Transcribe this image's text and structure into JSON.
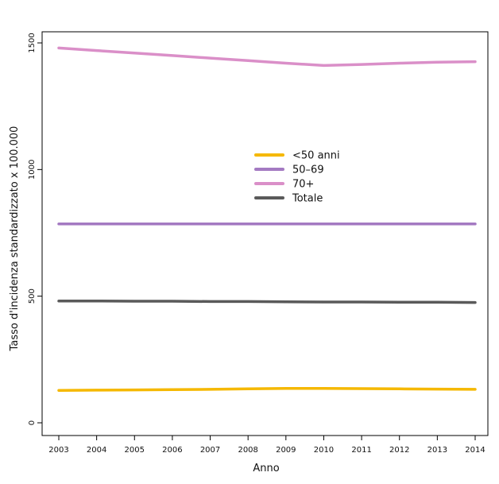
{
  "chart_data": {
    "type": "line",
    "title": "",
    "xlabel": "Anno",
    "ylabel": "Tasso d'incidenza standardizzato x 100.000",
    "x": [
      2003,
      2004,
      2005,
      2006,
      2007,
      2008,
      2009,
      2010,
      2011,
      2012,
      2013,
      2014
    ],
    "x_tick_labels": [
      "2003",
      "2004",
      "2005",
      "2006",
      "2007",
      "2008",
      "2009",
      "2010",
      "2011",
      "2012",
      "2013",
      "2014"
    ],
    "xlim": [
      2003,
      2014
    ],
    "ylim": [
      0,
      1500
    ],
    "y_ticks": [
      0,
      500,
      1000,
      1500
    ],
    "y_tick_labels": [
      "0",
      "500",
      "1000",
      "1500"
    ],
    "grid": false,
    "legend_position": "center",
    "series": [
      {
        "name": "<50 anni",
        "color": "#F5B800",
        "values": [
          128,
          129,
          130,
          131,
          132,
          134,
          136,
          136,
          135,
          134,
          133,
          132
        ]
      },
      {
        "name": "50–69",
        "color": "#A47AC2",
        "values": [
          785,
          785,
          785,
          785,
          785,
          785,
          785,
          785,
          785,
          785,
          785,
          785
        ]
      },
      {
        "name": "70+",
        "color": "#DA8FC8",
        "values": [
          1480,
          1470,
          1460,
          1450,
          1440,
          1430,
          1420,
          1411,
          1415,
          1420,
          1424,
          1426
        ]
      },
      {
        "name": "Totale",
        "color": "#5A5A5A",
        "values": [
          481,
          481,
          480,
          480,
          479,
          479,
          478,
          477,
          477,
          476,
          476,
          475
        ]
      }
    ]
  }
}
